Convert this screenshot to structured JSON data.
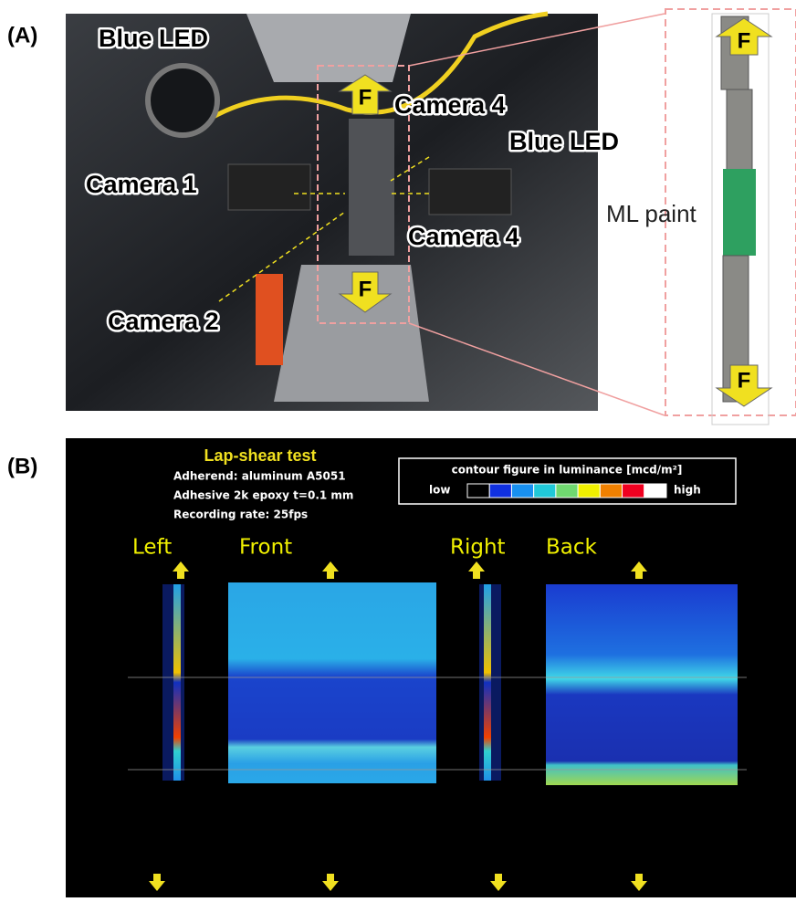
{
  "panel_a": {
    "label": "(A)",
    "callouts": [
      "Blue LED",
      "Camera 4",
      "Blue LED",
      "Camera 1",
      "Camera 4",
      "Camera 2"
    ],
    "inset_label": "ML paint",
    "force_labels": [
      "F",
      "F",
      "F",
      "F"
    ]
  },
  "panel_b": {
    "label": "(B)",
    "title": "Lap-shear test",
    "details": [
      "Adherend: aluminum A5051",
      "Adhesive 2k epoxy t=0.1 mm",
      "Recording rate: 25fps"
    ],
    "legend": {
      "title": "contour figure in luminance [mcd/m²]",
      "low": "low",
      "high": "high",
      "colors": [
        "#000000",
        "#1030e0",
        "#1890f0",
        "#20c8d8",
        "#70d870",
        "#f0f000",
        "#f08000",
        "#f00020",
        "#ffffff"
      ]
    },
    "views": [
      "Left",
      "Front",
      "Right",
      "Back"
    ]
  }
}
